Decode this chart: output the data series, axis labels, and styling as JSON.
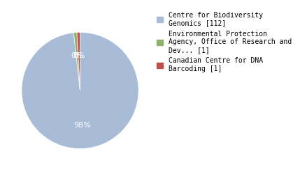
{
  "slices": [
    112,
    1,
    1
  ],
  "labels": [
    "Centre for Biodiversity\nGenomics [112]",
    "Environmental Protection\nAgency, Office of Research and\nDev... [1]",
    "Canadian Centre for DNA\nBarcoding [1]"
  ],
  "colors": [
    "#a8bcd8",
    "#8db06a",
    "#c0504d"
  ],
  "startangle": 90,
  "background_color": "#ffffff",
  "text_color": "#ffffff",
  "legend_fontsize": 7.0,
  "autopct_fontsize": 8,
  "pctdistance": 0.6
}
